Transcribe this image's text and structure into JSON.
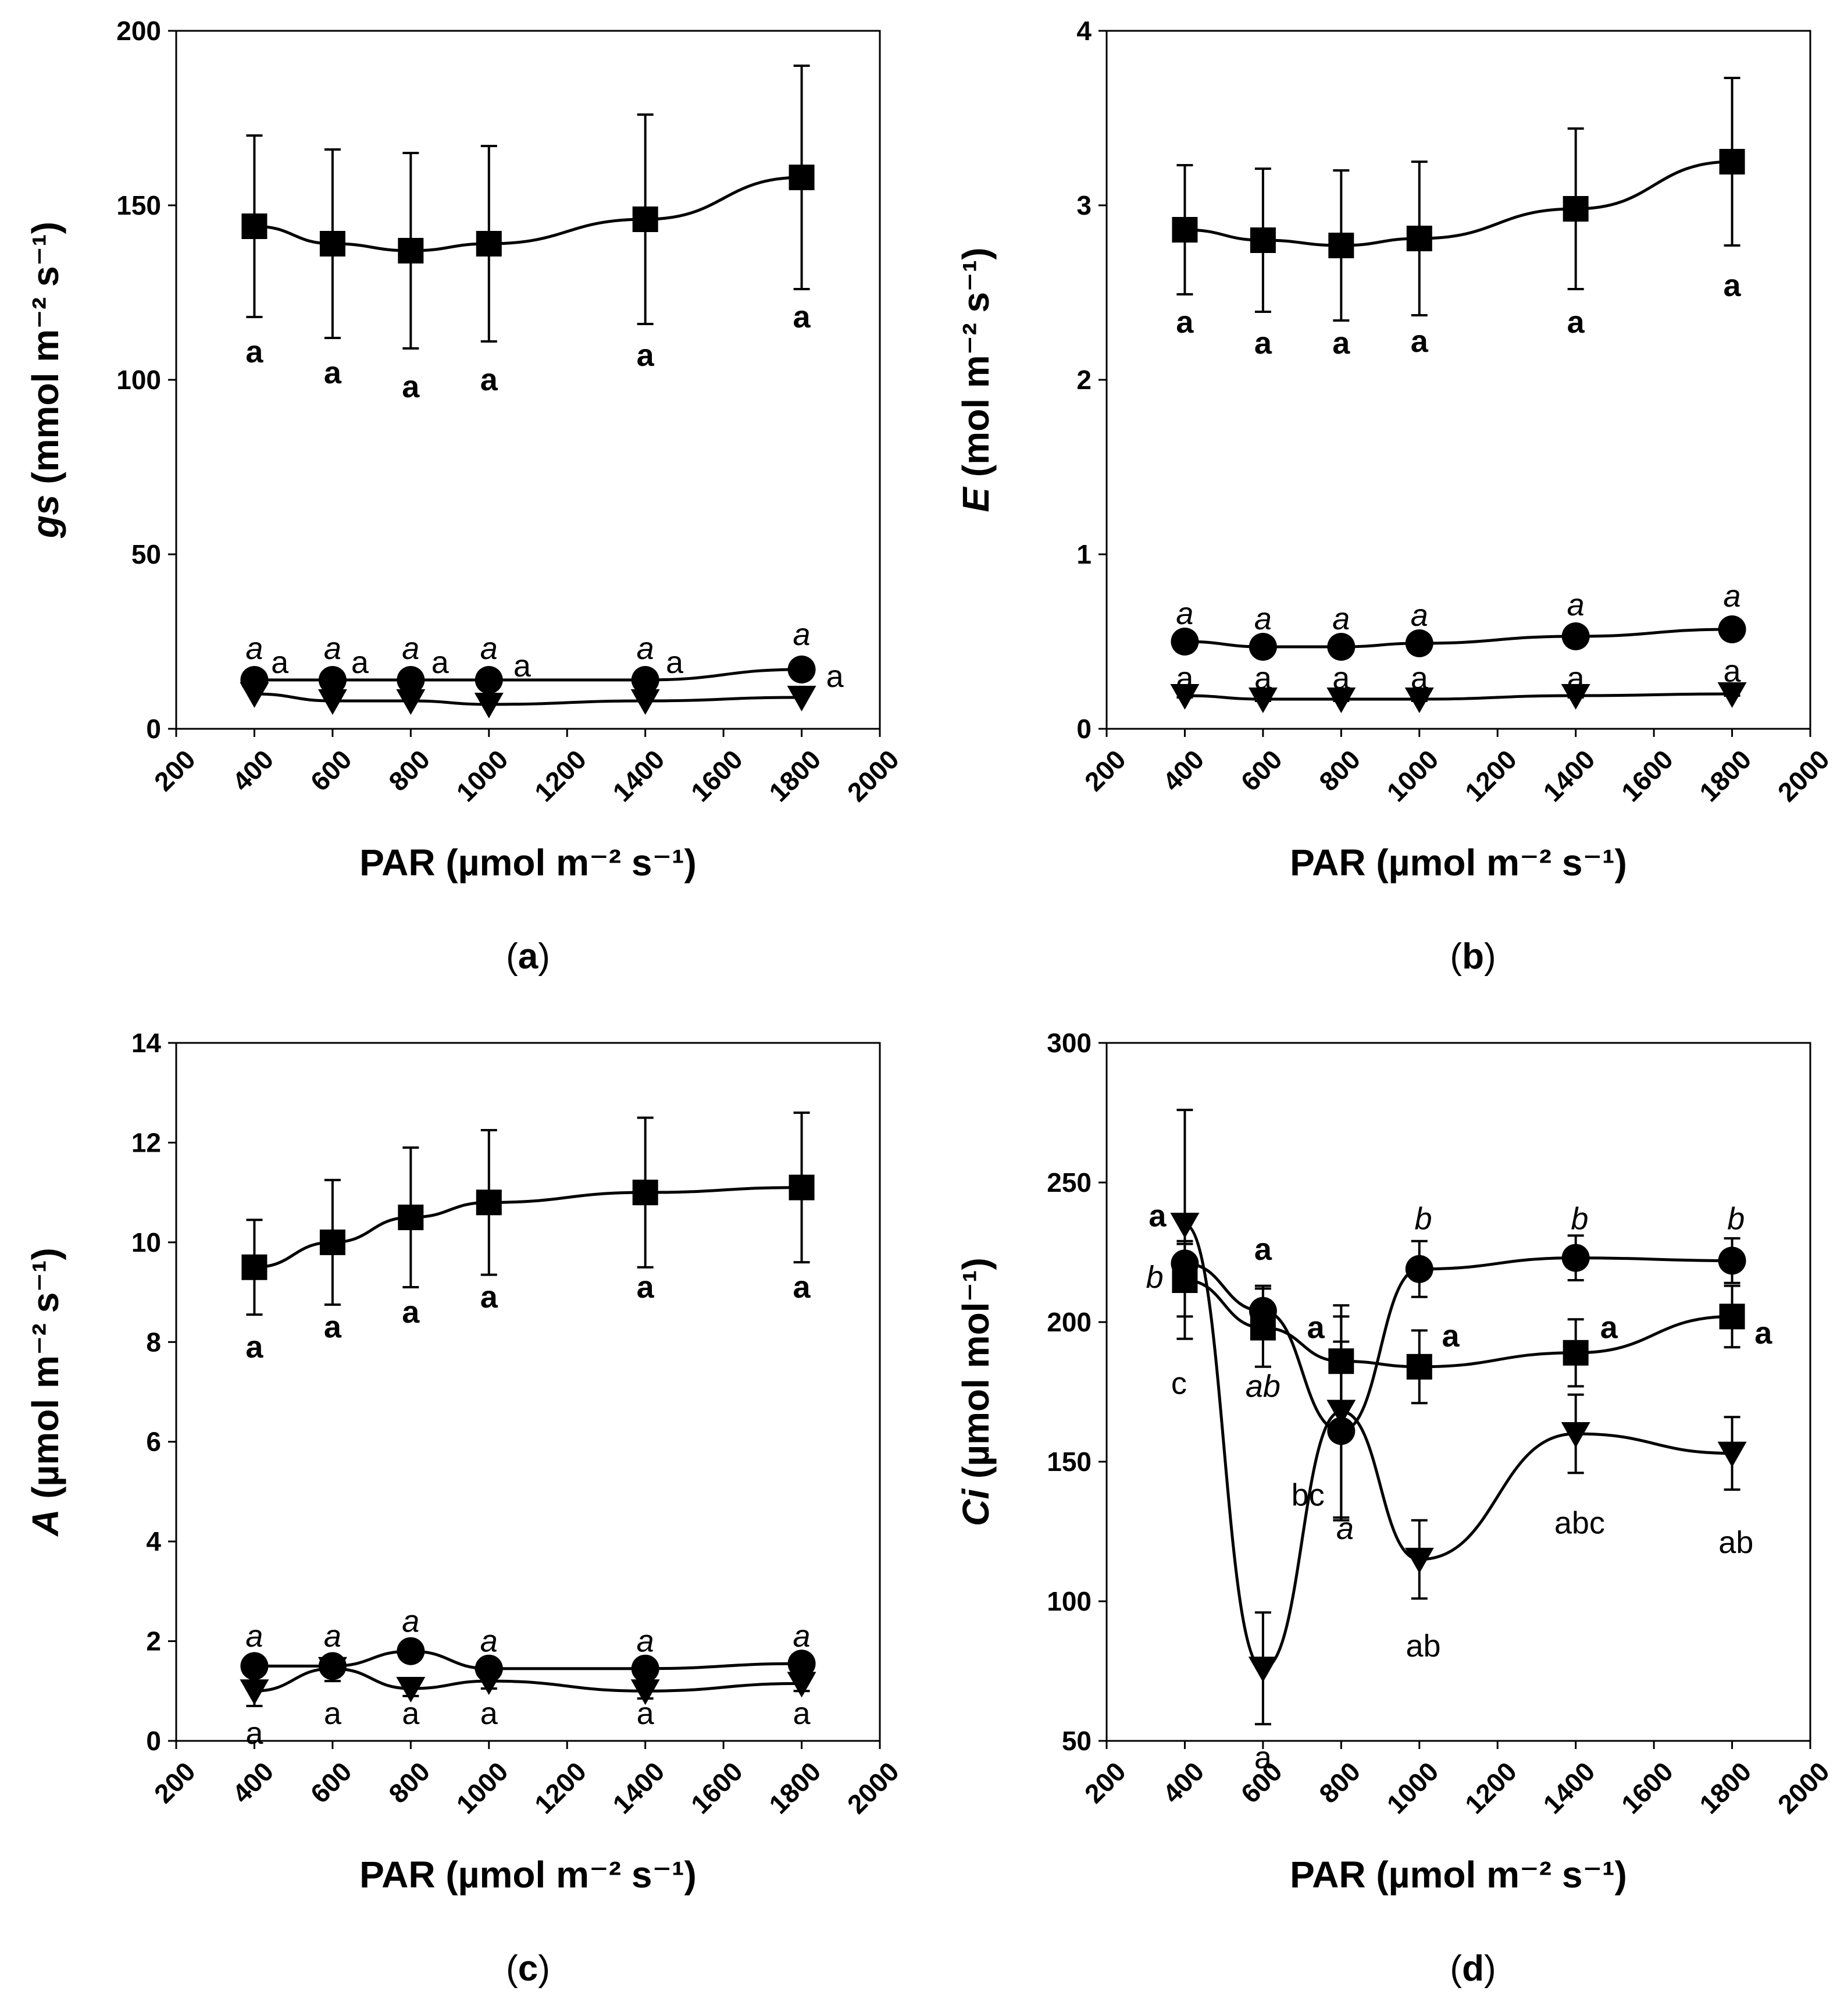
{
  "chart_data": [
    {
      "id": "a",
      "type": "line",
      "panel_label": "a",
      "xlabel": "PAR (µmol m⁻² s⁻¹)",
      "ylabel_italic": "gs",
      "ylabel_rest": " (mmol m⁻² s⁻¹)",
      "xlim": [
        200,
        2000
      ],
      "ylim": [
        0,
        200
      ],
      "xticks": [
        200,
        400,
        600,
        800,
        1000,
        1200,
        1400,
        1600,
        1800,
        2000
      ],
      "yticks": [
        0,
        50,
        100,
        150,
        200
      ],
      "x": [
        400,
        600,
        800,
        1000,
        1400,
        1800
      ],
      "series": [
        {
          "name": "square",
          "marker": "square",
          "values": [
            144,
            139,
            137,
            139,
            146,
            158
          ],
          "errors": [
            26,
            27,
            28,
            28,
            30,
            32
          ]
        },
        {
          "name": "circle",
          "marker": "circle",
          "values": [
            14,
            14,
            14,
            14,
            14,
            17
          ],
          "errors": [
            0,
            0,
            0,
            0,
            0,
            0
          ]
        },
        {
          "name": "triangle",
          "marker": "triangle-down",
          "values": [
            10,
            8,
            8,
            7,
            8,
            9
          ],
          "errors": [
            0,
            0,
            0,
            0,
            0,
            0
          ]
        }
      ],
      "annotations": [
        {
          "x": 400,
          "y": 108,
          "text": "a",
          "style": "bold"
        },
        {
          "x": 600,
          "y": 102,
          "text": "a",
          "style": "bold"
        },
        {
          "x": 800,
          "y": 98,
          "text": "a",
          "style": "bold"
        },
        {
          "x": 1000,
          "y": 100,
          "text": "a",
          "style": "bold"
        },
        {
          "x": 1400,
          "y": 107,
          "text": "a",
          "style": "bold"
        },
        {
          "x": 1800,
          "y": 118,
          "text": "a",
          "style": "bold"
        },
        {
          "x": 400,
          "y": 23,
          "text": "a",
          "style": "italic"
        },
        {
          "x": 600,
          "y": 23,
          "text": "a",
          "style": "italic"
        },
        {
          "x": 800,
          "y": 23,
          "text": "a",
          "style": "italic"
        },
        {
          "x": 1000,
          "y": 23,
          "text": "a",
          "style": "italic"
        },
        {
          "x": 1400,
          "y": 23,
          "text": "a",
          "style": "italic"
        },
        {
          "x": 1800,
          "y": 27,
          "text": "a",
          "style": "italic"
        },
        {
          "x": 465,
          "y": 19,
          "text": "a",
          "style": "normal"
        },
        {
          "x": 670,
          "y": 19,
          "text": "a",
          "style": "normal"
        },
        {
          "x": 875,
          "y": 19,
          "text": "a",
          "style": "normal"
        },
        {
          "x": 1085,
          "y": 18,
          "text": "a",
          "style": "normal"
        },
        {
          "x": 1475,
          "y": 19,
          "text": "a",
          "style": "normal"
        },
        {
          "x": 1885,
          "y": 15,
          "text": "a",
          "style": "normal"
        }
      ]
    },
    {
      "id": "b",
      "type": "line",
      "panel_label": "b",
      "xlabel": "PAR (µmol m⁻² s⁻¹)",
      "ylabel_italic": "E",
      "ylabel_rest": " (mol m⁻² s⁻¹)",
      "xlim": [
        200,
        2000
      ],
      "ylim": [
        0,
        4
      ],
      "xticks": [
        200,
        400,
        600,
        800,
        1000,
        1200,
        1400,
        1600,
        1800,
        2000
      ],
      "yticks": [
        0,
        1,
        2,
        3,
        4
      ],
      "x": [
        400,
        600,
        800,
        1000,
        1400,
        1800
      ],
      "series": [
        {
          "name": "square",
          "marker": "square",
          "values": [
            2.86,
            2.8,
            2.77,
            2.81,
            2.98,
            3.25
          ],
          "errors": [
            0.37,
            0.41,
            0.43,
            0.44,
            0.46,
            0.48
          ]
        },
        {
          "name": "circle",
          "marker": "circle",
          "values": [
            0.5,
            0.47,
            0.47,
            0.49,
            0.53,
            0.57
          ],
          "errors": [
            0.03,
            0.03,
            0.03,
            0.03,
            0.04,
            0.05
          ]
        },
        {
          "name": "triangle",
          "marker": "triangle-down",
          "values": [
            0.19,
            0.17,
            0.17,
            0.17,
            0.19,
            0.2
          ],
          "errors": [
            0.01,
            0.01,
            0.01,
            0.01,
            0.01,
            0.01
          ]
        }
      ],
      "annotations": [
        {
          "x": 400,
          "y": 2.33,
          "text": "a",
          "style": "bold"
        },
        {
          "x": 600,
          "y": 2.21,
          "text": "a",
          "style": "bold"
        },
        {
          "x": 800,
          "y": 2.21,
          "text": "a",
          "style": "bold"
        },
        {
          "x": 1000,
          "y": 2.22,
          "text": "a",
          "style": "bold"
        },
        {
          "x": 1400,
          "y": 2.33,
          "text": "a",
          "style": "bold"
        },
        {
          "x": 1800,
          "y": 2.54,
          "text": "a",
          "style": "bold"
        },
        {
          "x": 400,
          "y": 0.66,
          "text": "a",
          "style": "italic"
        },
        {
          "x": 600,
          "y": 0.63,
          "text": "a",
          "style": "italic"
        },
        {
          "x": 800,
          "y": 0.63,
          "text": "a",
          "style": "italic"
        },
        {
          "x": 1000,
          "y": 0.65,
          "text": "a",
          "style": "italic"
        },
        {
          "x": 1400,
          "y": 0.71,
          "text": "a",
          "style": "italic"
        },
        {
          "x": 1800,
          "y": 0.76,
          "text": "a",
          "style": "italic"
        },
        {
          "x": 400,
          "y": 0.29,
          "text": "a",
          "style": "normal"
        },
        {
          "x": 600,
          "y": 0.29,
          "text": "a",
          "style": "normal"
        },
        {
          "x": 800,
          "y": 0.29,
          "text": "a",
          "style": "normal"
        },
        {
          "x": 1000,
          "y": 0.29,
          "text": "a",
          "style": "normal"
        },
        {
          "x": 1400,
          "y": 0.29,
          "text": "a",
          "style": "normal"
        },
        {
          "x": 1800,
          "y": 0.33,
          "text": "a",
          "style": "normal"
        }
      ]
    },
    {
      "id": "c",
      "type": "line",
      "panel_label": "c",
      "xlabel": "PAR (µmol m⁻² s⁻¹)",
      "ylabel_italic": "A",
      "ylabel_rest": " (µmol m⁻² s⁻¹)",
      "xlim": [
        200,
        2000
      ],
      "ylim": [
        0,
        14
      ],
      "xticks": [
        200,
        400,
        600,
        800,
        1000,
        1200,
        1400,
        1600,
        1800,
        2000
      ],
      "yticks": [
        0,
        2,
        4,
        6,
        8,
        10,
        12,
        14
      ],
      "x": [
        400,
        600,
        800,
        1000,
        1400,
        1800
      ],
      "series": [
        {
          "name": "square",
          "marker": "square",
          "values": [
            9.5,
            10.0,
            10.5,
            10.8,
            11.0,
            11.1
          ],
          "errors": [
            0.95,
            1.25,
            1.4,
            1.45,
            1.5,
            1.5
          ]
        },
        {
          "name": "circle",
          "marker": "circle",
          "values": [
            1.5,
            1.5,
            1.8,
            1.45,
            1.45,
            1.55
          ],
          "errors": [
            0.08,
            0.08,
            0.08,
            0.08,
            0.08,
            0.1
          ]
        },
        {
          "name": "triangle",
          "marker": "triangle-down",
          "values": [
            1.0,
            1.45,
            1.05,
            1.2,
            1.0,
            1.15
          ],
          "errors": [
            0.3,
            0.25,
            0.15,
            0.15,
            0.15,
            0.15
          ]
        }
      ],
      "annotations": [
        {
          "x": 400,
          "y": 7.9,
          "text": "a",
          "style": "bold"
        },
        {
          "x": 600,
          "y": 8.3,
          "text": "a",
          "style": "bold"
        },
        {
          "x": 800,
          "y": 8.6,
          "text": "a",
          "style": "bold"
        },
        {
          "x": 1000,
          "y": 8.9,
          "text": "a",
          "style": "bold"
        },
        {
          "x": 1400,
          "y": 9.1,
          "text": "a",
          "style": "bold"
        },
        {
          "x": 1800,
          "y": 9.1,
          "text": "a",
          "style": "bold"
        },
        {
          "x": 400,
          "y": 2.1,
          "text": "a",
          "style": "italic"
        },
        {
          "x": 600,
          "y": 2.1,
          "text": "a",
          "style": "italic"
        },
        {
          "x": 800,
          "y": 2.4,
          "text": "a",
          "style": "italic"
        },
        {
          "x": 1000,
          "y": 2.0,
          "text": "a",
          "style": "italic"
        },
        {
          "x": 1400,
          "y": 2.0,
          "text": "a",
          "style": "italic"
        },
        {
          "x": 1800,
          "y": 2.1,
          "text": "a",
          "style": "italic"
        },
        {
          "x": 400,
          "y": 0.15,
          "text": "a",
          "style": "normal"
        },
        {
          "x": 600,
          "y": 0.55,
          "text": "a",
          "style": "normal"
        },
        {
          "x": 800,
          "y": 0.55,
          "text": "a",
          "style": "normal"
        },
        {
          "x": 1000,
          "y": 0.55,
          "text": "a",
          "style": "normal"
        },
        {
          "x": 1400,
          "y": 0.55,
          "text": "a",
          "style": "normal"
        },
        {
          "x": 1800,
          "y": 0.55,
          "text": "a",
          "style": "normal"
        }
      ]
    },
    {
      "id": "d",
      "type": "line",
      "panel_label": "d",
      "xlabel": "PAR (µmol m⁻² s⁻¹)",
      "ylabel_italic": "Ci",
      "ylabel_rest": " (µmol mol⁻¹)",
      "xlim": [
        200,
        2000
      ],
      "ylim": [
        50,
        300
      ],
      "xticks": [
        200,
        400,
        600,
        800,
        1000,
        1200,
        1400,
        1600,
        1800,
        2000
      ],
      "yticks": [
        50,
        100,
        150,
        200,
        250,
        300
      ],
      "x": [
        400,
        600,
        800,
        1000,
        1400,
        1800
      ],
      "series": [
        {
          "name": "square",
          "marker": "square",
          "values": [
            215,
            198,
            186,
            184,
            189,
            202
          ],
          "errors": [
            13,
            14,
            16,
            13,
            12,
            11
          ]
        },
        {
          "name": "circle",
          "marker": "circle",
          "values": [
            221,
            204,
            161,
            219,
            223,
            222
          ],
          "errors": [
            8,
            9,
            32,
            10,
            8,
            8
          ]
        },
        {
          "name": "triangle",
          "marker": "triangle-down",
          "values": [
            235,
            76,
            168,
            115,
            160,
            153
          ],
          "errors": [
            41,
            20,
            38,
            14,
            14,
            13
          ]
        }
      ],
      "annotations": [
        {
          "x": 330,
          "y": 238,
          "text": "a",
          "style": "bold"
        },
        {
          "x": 600,
          "y": 226,
          "text": "a",
          "style": "bold"
        },
        {
          "x": 735,
          "y": 198,
          "text": "a",
          "style": "bold"
        },
        {
          "x": 1080,
          "y": 195,
          "text": "a",
          "style": "bold"
        },
        {
          "x": 1485,
          "y": 198,
          "text": "a",
          "style": "bold"
        },
        {
          "x": 1880,
          "y": 196,
          "text": "a",
          "style": "bold"
        },
        {
          "x": 323,
          "y": 216,
          "text": "b",
          "style": "italic"
        },
        {
          "x": 600,
          "y": 177,
          "text": "ab",
          "style": "italic"
        },
        {
          "x": 810,
          "y": 126,
          "text": "a",
          "style": "italic"
        },
        {
          "x": 1010,
          "y": 237,
          "text": "b",
          "style": "italic"
        },
        {
          "x": 1410,
          "y": 237,
          "text": "b",
          "style": "italic"
        },
        {
          "x": 1810,
          "y": 237,
          "text": "b",
          "style": "italic"
        },
        {
          "x": 385,
          "y": 178,
          "text": "c",
          "style": "normal"
        },
        {
          "x": 600,
          "y": 44,
          "text": "a",
          "style": "normal"
        },
        {
          "x": 715,
          "y": 138,
          "text": "bc",
          "style": "normal"
        },
        {
          "x": 1010,
          "y": 84,
          "text": "ab",
          "style": "normal"
        },
        {
          "x": 1410,
          "y": 128,
          "text": "abc",
          "style": "normal"
        },
        {
          "x": 1810,
          "y": 121,
          "text": "ab",
          "style": "normal"
        }
      ]
    }
  ]
}
